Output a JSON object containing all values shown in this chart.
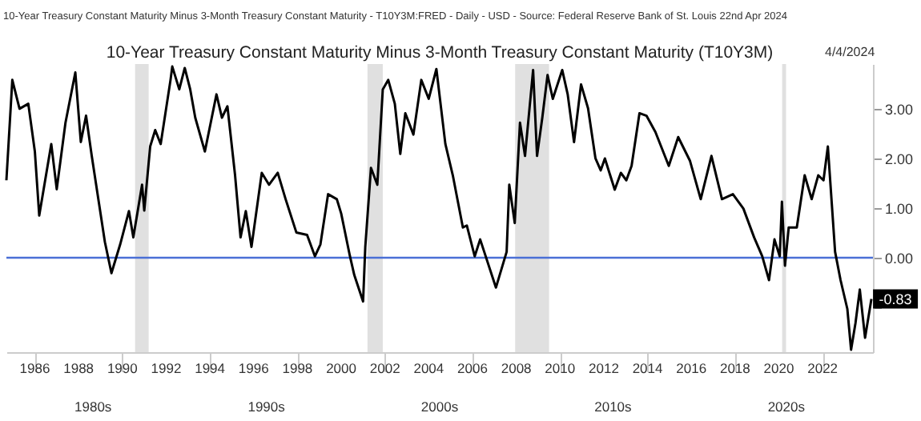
{
  "chart_data": {
    "type": "line",
    "title": "10-Year Treasury Constant Maturity Minus 3-Month Treasury Constant Maturity (T10Y3M)",
    "annotations": [
      "10-Year Treasury Constant Maturity Minus 3-Month Treasury Constant Maturity - T10Y3M:FRED - Daily - USD - Source: Federal Reserve Bank of St. Louis 22nd Apr 2024",
      "4/4/2024",
      "1980s",
      "1990s",
      "2000s",
      "2010s",
      "2020s",
      {
        "text": "-0.83",
        "x": 2024.23,
        "y": -0.83
      }
    ],
    "x": [
      1984.7,
      1984.97,
      1985.3,
      1985.7,
      1986.0,
      1986.2,
      1986.75,
      1987.0,
      1987.4,
      1987.85,
      1988.1,
      1988.34,
      1988.6,
      1989.2,
      1989.5,
      1989.9,
      1990.3,
      1990.5,
      1990.9,
      1991.0,
      1991.27,
      1991.5,
      1991.75,
      1992.2,
      1992.28,
      1992.6,
      1992.85,
      1993.1,
      1993.33,
      1993.77,
      1994.3,
      1994.55,
      1994.8,
      1995.15,
      1995.4,
      1995.64,
      1995.9,
      1996.37,
      1996.7,
      1997.1,
      1997.46,
      1997.95,
      1998.44,
      1998.8,
      1999.05,
      1999.4,
      1999.8,
      2000.0,
      2000.4,
      2000.6,
      2001.0,
      2001.1,
      2001.36,
      2001.65,
      2001.9,
      2002.15,
      2002.45,
      2002.7,
      2002.93,
      2003.3,
      2003.66,
      2004.0,
      2004.35,
      2004.76,
      2005.1,
      2005.56,
      2005.74,
      2006.1,
      2006.35,
      2007.07,
      2007.56,
      2007.68,
      2007.93,
      2008.17,
      2008.4,
      2008.77,
      2008.95,
      2009.19,
      2009.43,
      2009.67,
      2010.1,
      2010.35,
      2010.64,
      2010.96,
      2011.28,
      2011.62,
      2011.86,
      2012.05,
      2012.5,
      2012.78,
      2013.03,
      2013.27,
      2013.63,
      2013.95,
      2014.36,
      2014.97,
      2015.4,
      2015.94,
      2016.43,
      2016.92,
      2017.4,
      2017.9,
      2018.38,
      2018.87,
      2019.24,
      2019.55,
      2019.8,
      2020.04,
      2020.14,
      2020.28,
      2020.45,
      2020.82,
      2021.18,
      2021.5,
      2021.8,
      2022.04,
      2022.24,
      2022.57,
      2022.82,
      2023.13,
      2023.3,
      2023.5,
      2023.7,
      2023.94,
      2024.23
    ],
    "series": [
      {
        "color": "#000000",
        "values": [
          1.56,
          3.58,
          3.0,
          3.1,
          2.14,
          0.85,
          2.29,
          1.38,
          2.72,
          3.73,
          2.33,
          2.86,
          2.05,
          0.32,
          -0.31,
          0.27,
          0.94,
          0.41,
          1.47,
          0.95,
          2.24,
          2.57,
          2.29,
          3.58,
          3.85,
          3.39,
          3.82,
          3.39,
          2.82,
          2.14,
          3.29,
          2.82,
          3.05,
          1.66,
          0.41,
          0.94,
          0.22,
          1.71,
          1.47,
          1.71,
          1.18,
          0.51,
          0.46,
          0.03,
          0.27,
          1.28,
          1.18,
          0.89,
          0.03,
          -0.35,
          -0.88,
          0.22,
          1.81,
          1.47,
          3.39,
          3.58,
          3.1,
          2.09,
          2.91,
          2.48,
          3.58,
          3.2,
          3.8,
          2.29,
          1.66,
          0.61,
          0.65,
          0.03,
          0.37,
          -0.6,
          0.12,
          1.47,
          0.7,
          2.72,
          2.05,
          3.78,
          2.05,
          2.82,
          3.68,
          3.2,
          3.78,
          3.29,
          2.33,
          3.49,
          3.01,
          2.0,
          1.76,
          2.0,
          1.37,
          1.71,
          1.56,
          1.85,
          2.91,
          2.86,
          2.53,
          1.85,
          2.43,
          1.95,
          1.18,
          2.05,
          1.18,
          1.28,
          0.99,
          0.41,
          0.03,
          -0.45,
          0.37,
          0.03,
          1.13,
          -0.16,
          0.61,
          0.61,
          1.66,
          1.18,
          1.66,
          1.56,
          2.24,
          0.12,
          -0.45,
          -1.03,
          -1.85,
          -1.32,
          -0.64,
          -1.61,
          -0.83
        ]
      }
    ],
    "xlim": [
      1984.7,
      2024.3
    ],
    "xticks": [
      1986,
      1988,
      1990,
      1992,
      1994,
      1996,
      1998,
      2000,
      2002,
      2004,
      2006,
      2008,
      2010,
      2012,
      2014,
      2016,
      2018,
      2020,
      2022
    ],
    "ylim": [
      -1.9,
      3.9
    ],
    "yticks": [
      {
        "value": -1,
        "label": null
      },
      {
        "value": 0,
        "label": "0.00"
      },
      {
        "value": 1,
        "label": "1.00"
      },
      {
        "value": 2,
        "label": "2.00"
      },
      {
        "value": 3,
        "label": "3.00"
      }
    ],
    "ref_lines": [
      {
        "axis": "y",
        "value": 0,
        "color": "#4a6fd6"
      }
    ],
    "bands": [
      {
        "axis": "x",
        "from": 1990.58,
        "to": 1991.2,
        "color": "#e0e0e0"
      },
      {
        "axis": "x",
        "from": 2001.2,
        "to": 2001.9,
        "color": "#e0e0e0"
      },
      {
        "axis": "x",
        "from": 2007.95,
        "to": 2009.5,
        "color": "#e0e0e0"
      },
      {
        "axis": "x",
        "from": 2020.15,
        "to": 2020.33,
        "color": "#e0e0e0"
      }
    ]
  }
}
